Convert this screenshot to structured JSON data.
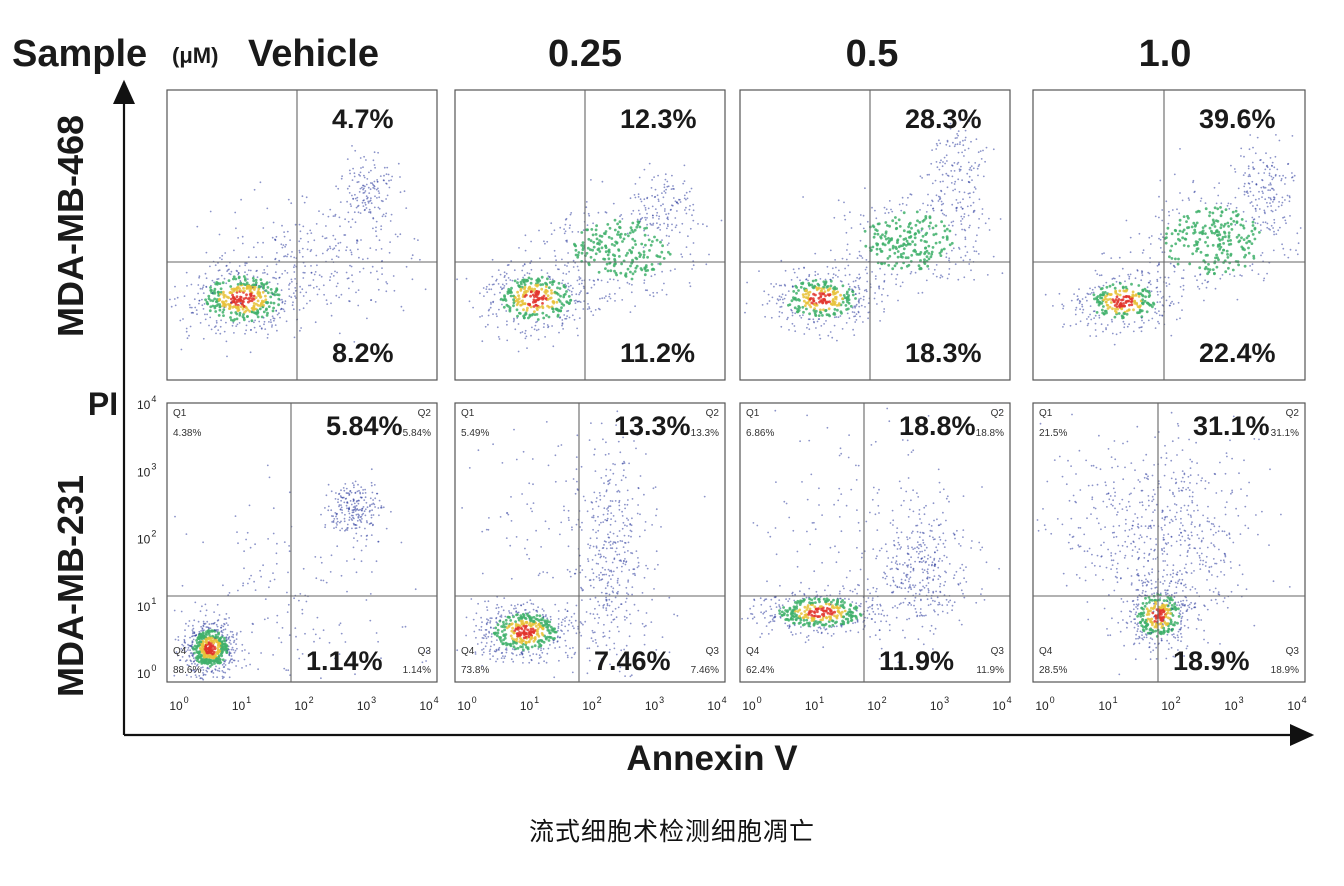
{
  "header": {
    "sample_label": "Sample",
    "unit_label": "(μM)",
    "columns": [
      "Vehicle",
      "0.25",
      "0.5",
      "1.0"
    ]
  },
  "axes": {
    "y_label": "PI",
    "x_label": "Annexin V"
  },
  "caption": "流式细胞术检测细胞凋亡",
  "colors": {
    "density_low": "#2b3a9c",
    "density_mid": "#3fb06b",
    "density_high": "#e2342b",
    "gate": "#666666"
  },
  "chart_data": [
    {
      "type": "scatter",
      "row": "MDA-MB-468",
      "panels": [
        {
          "column": "Vehicle",
          "upper_right": "4.7%",
          "lower_right": "8.2%"
        },
        {
          "column": "0.25",
          "upper_right": "12.3%",
          "lower_right": "11.2%"
        },
        {
          "column": "0.5",
          "upper_right": "28.3%",
          "lower_right": "18.3%"
        },
        {
          "column": "1.0",
          "upper_right": "39.6%",
          "lower_right": "22.4%"
        }
      ]
    },
    {
      "type": "scatter",
      "row": "MDA-MB-231",
      "x_ticks": [
        "10",
        "10",
        "10",
        "10",
        "10"
      ],
      "x_tick_exponents": [
        "0",
        "1",
        "2",
        "3",
        "4"
      ],
      "y_ticks": [
        "10",
        "10",
        "10",
        "10",
        "10"
      ],
      "y_tick_exponents": [
        "0",
        "1",
        "2",
        "3",
        "4"
      ],
      "panels": [
        {
          "column": "Vehicle",
          "upper_right": "5.84%",
          "lower_right": "1.14%",
          "q1": "Q1",
          "q1_value": "4.38%",
          "q2": "Q2",
          "q2_value": "5.84%",
          "q3": "Q3",
          "q3_value": "1.14%",
          "q4": "Q4",
          "q4_value": "88.6%"
        },
        {
          "column": "0.25",
          "upper_right": "13.3%",
          "lower_right": "7.46%",
          "q1": "Q1",
          "q1_value": "5.49%",
          "q2": "Q2",
          "q2_value": "13.3%",
          "q3": "Q3",
          "q3_value": "7.46%",
          "q4": "Q4",
          "q4_value": "73.8%"
        },
        {
          "column": "0.5",
          "upper_right": "18.8%",
          "lower_right": "11.9%",
          "q1": "Q1",
          "q1_value": "6.86%",
          "q2": "Q2",
          "q2_value": "18.8%",
          "q3": "Q3",
          "q3_value": "11.9%",
          "q4": "Q4",
          "q4_value": "62.4%"
        },
        {
          "column": "1.0",
          "upper_right": "31.1%",
          "lower_right": "18.9%",
          "q1": "Q1",
          "q1_value": "21.5%",
          "q2": "Q2",
          "q2_value": "31.1%",
          "q3": "Q3",
          "q3_value": "18.9%",
          "q4": "Q4",
          "q4_value": "28.5%"
        }
      ]
    }
  ]
}
